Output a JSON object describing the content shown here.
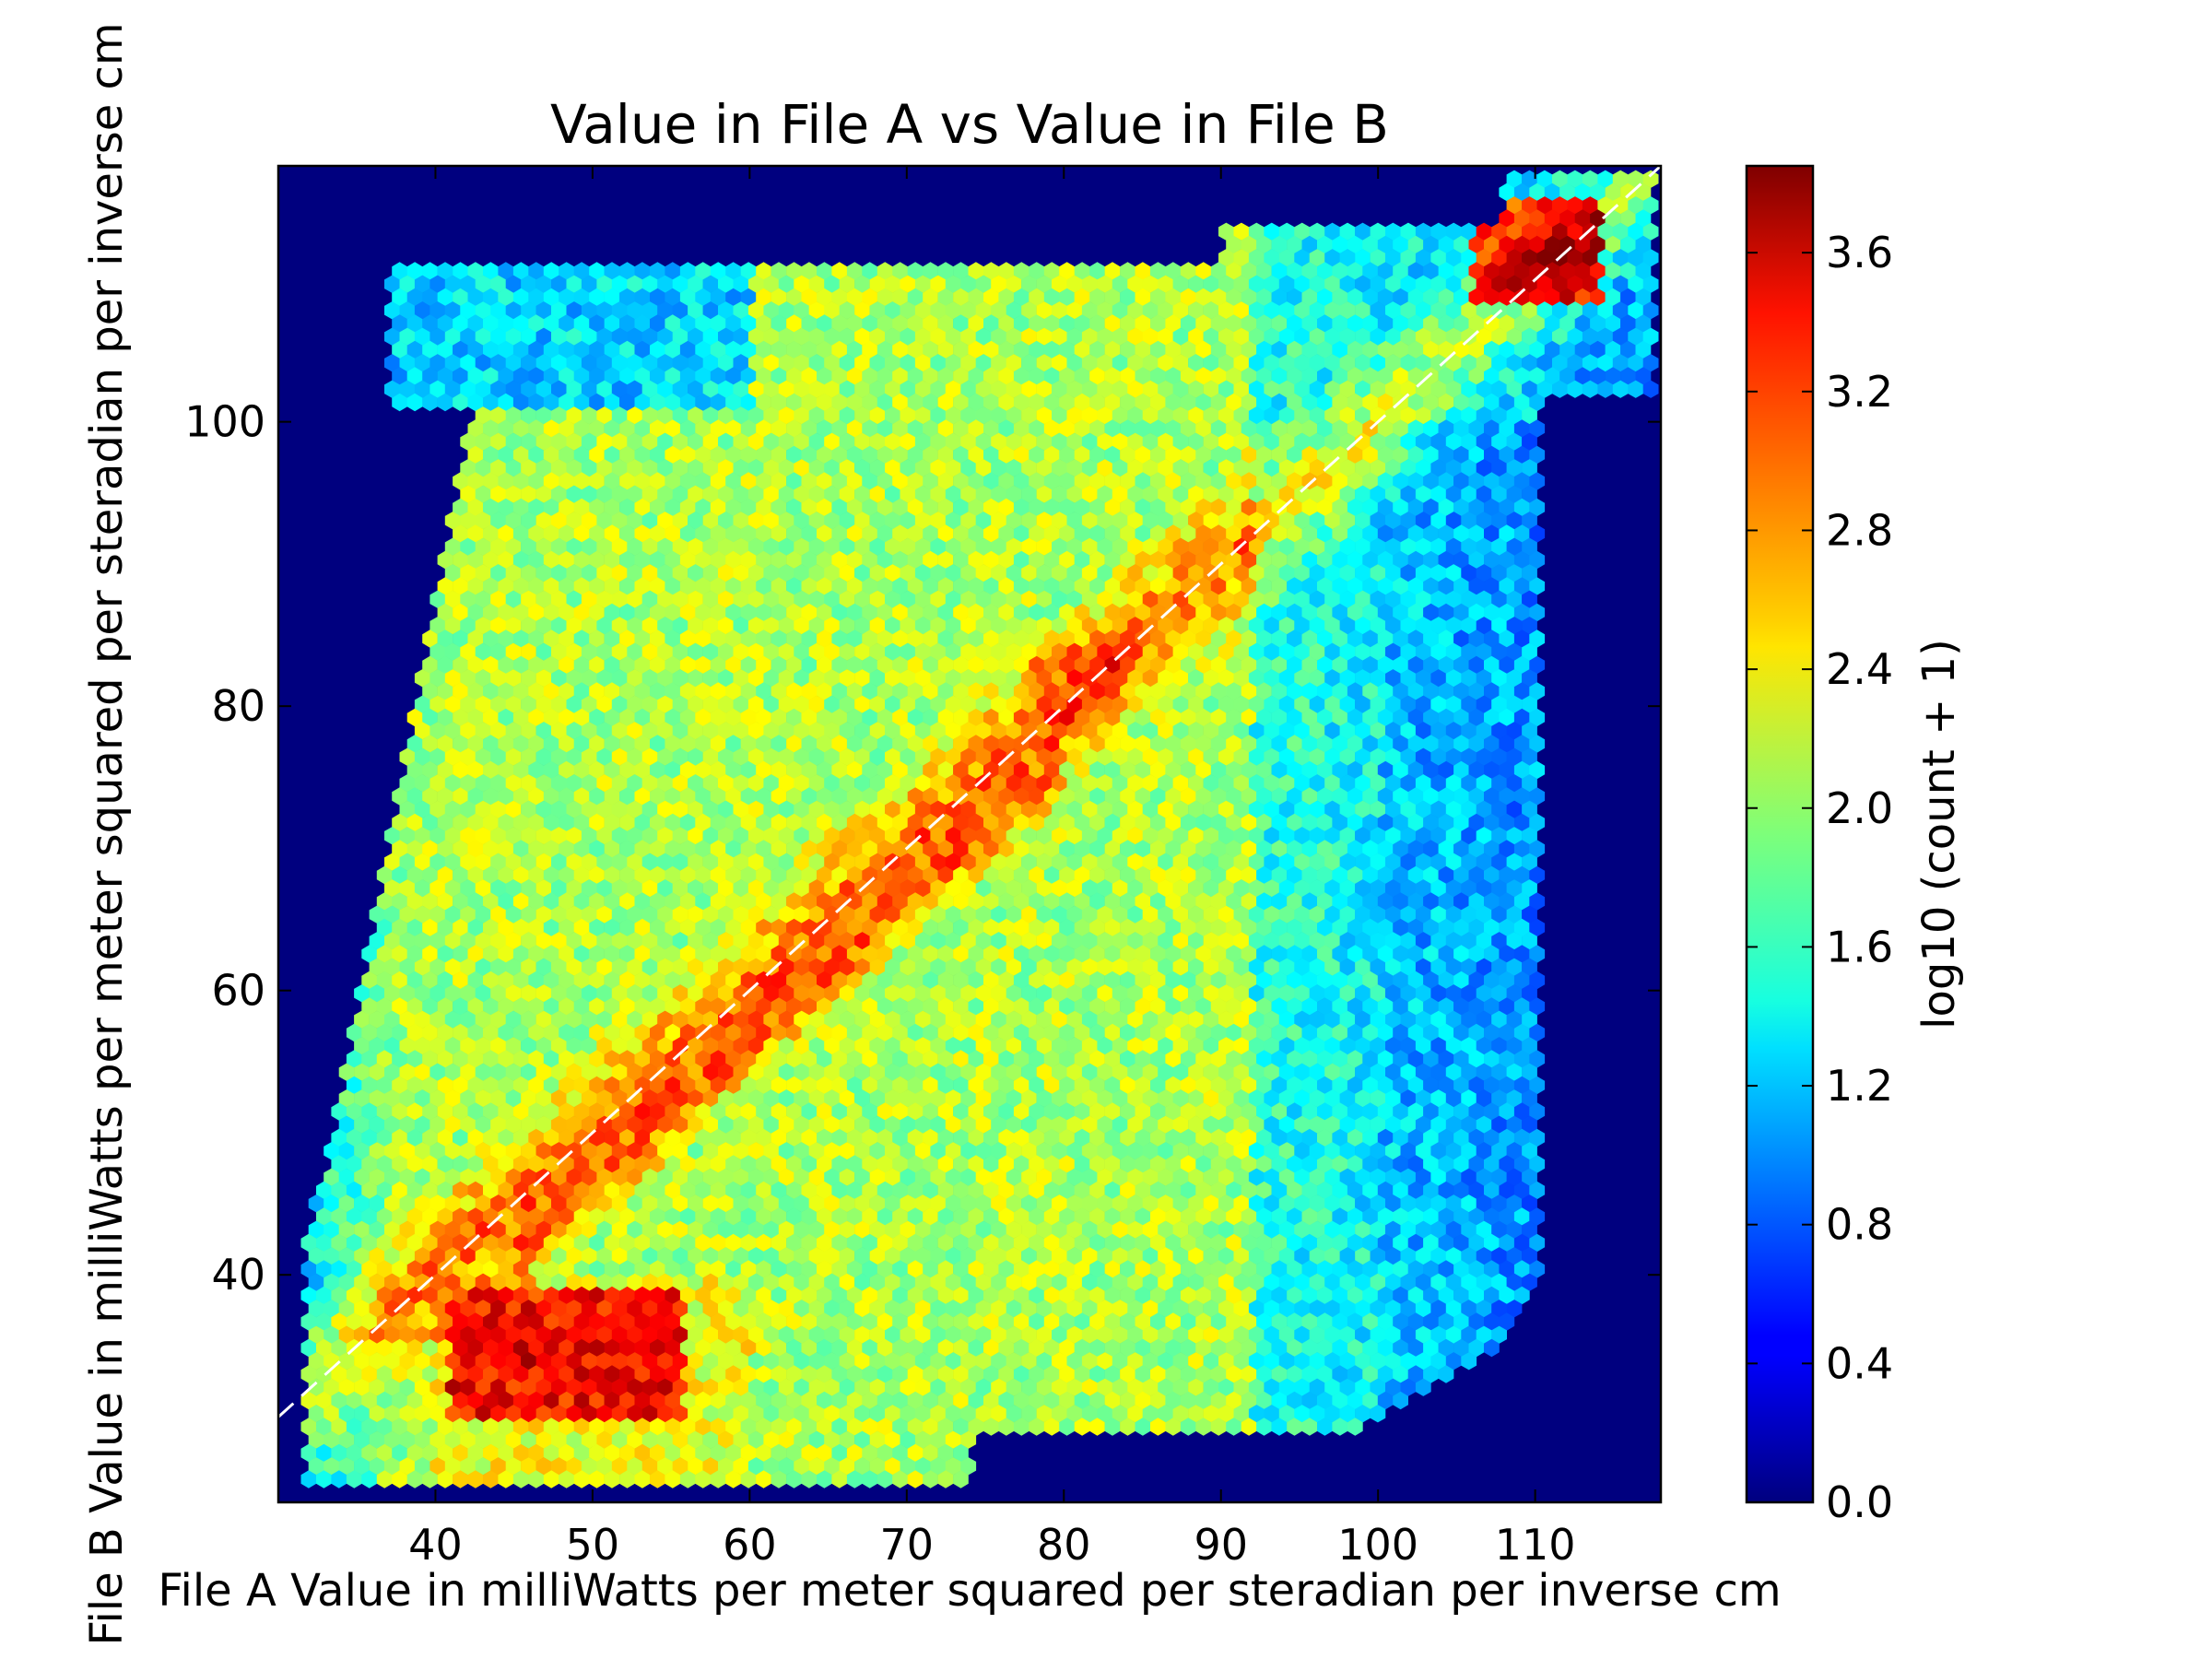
{
  "chart_data": {
    "type": "heatmap",
    "style": "hexbin",
    "title": "Value in File A vs Value in File B",
    "xlabel": "File A Value in milliWatts per meter squared per steradian per inverse cm",
    "ylabel": "File B Value in milliWatts per meter squared per steradian per inverse cm",
    "xlim": [
      30,
      118
    ],
    "ylim": [
      24,
      118
    ],
    "xticks": [
      40,
      50,
      60,
      70,
      80,
      90,
      100,
      110
    ],
    "yticks": [
      40,
      60,
      80,
      100
    ],
    "reference_line": {
      "style": "dashed",
      "color": "#ffffff",
      "x": [
        30,
        118
      ],
      "y": [
        30,
        118
      ]
    },
    "colorbar": {
      "label": "log10 (count + 1)",
      "range": [
        0.0,
        3.85
      ],
      "ticks": [
        "0.0",
        "0.4",
        "0.8",
        "1.2",
        "1.6",
        "2.0",
        "2.4",
        "2.8",
        "3.2",
        "3.6"
      ],
      "colormap": "jet"
    },
    "background_color": "#00007f",
    "features": {
      "diagonal_band_peak": 3.5,
      "low_hotspot": {
        "x": [
          41,
          56
        ],
        "y": [
          30,
          39
        ],
        "value": 3.2
      },
      "upper_hotspot": {
        "x": [
          106,
          114
        ],
        "y": [
          108,
          116
        ],
        "value": 3.75
      },
      "mid_hotspot": {
        "x": [
          78,
          84
        ],
        "y": [
          79,
          84
        ],
        "value": 3.3
      }
    }
  }
}
